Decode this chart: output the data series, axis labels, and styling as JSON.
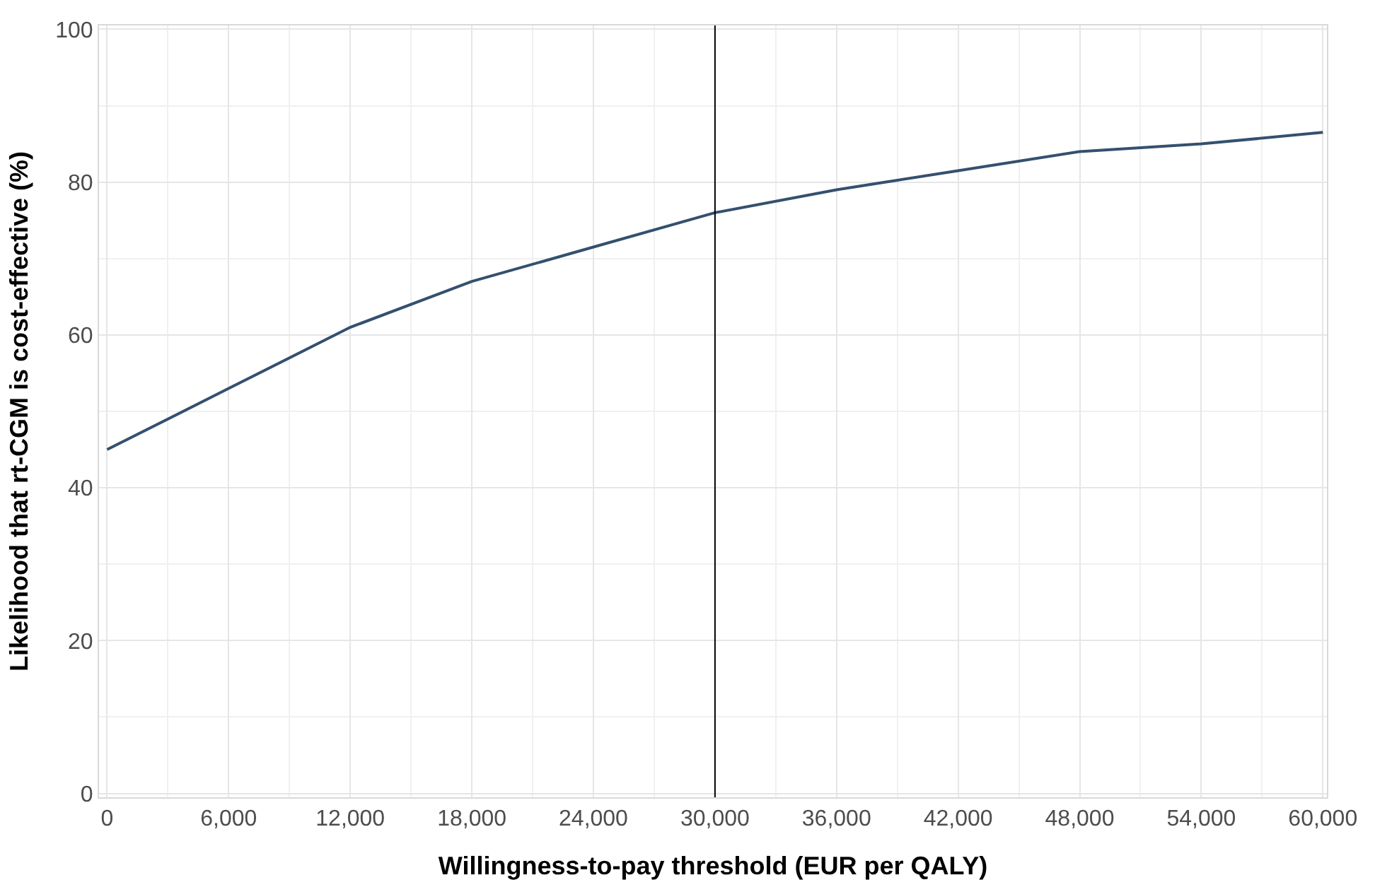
{
  "chart_data": {
    "type": "line",
    "xlabel": "Willingness-to-pay threshold (EUR per QALY)",
    "ylabel": "Likelihood that rt-CGM is cost-effective (%)",
    "x": [
      0,
      6000,
      12000,
      18000,
      24000,
      30000,
      36000,
      42000,
      48000,
      54000,
      60000
    ],
    "series": [
      {
        "color": "#34506f",
        "values": [
          45,
          53,
          61,
          67,
          71.5,
          76,
          79,
          81.5,
          84,
          85,
          86.5
        ]
      }
    ],
    "xlim": [
      -400,
      60200
    ],
    "xticks": [
      {
        "value": 0,
        "label": "0"
      },
      {
        "value": 6000,
        "label": "6,000"
      },
      {
        "value": 12000,
        "label": "12,000"
      },
      {
        "value": 18000,
        "label": "18,000"
      },
      {
        "value": 24000,
        "label": "24,000"
      },
      {
        "value": 30000,
        "label": "30,000"
      },
      {
        "value": 36000,
        "label": "36,000"
      },
      {
        "value": 42000,
        "label": "42,000"
      },
      {
        "value": 48000,
        "label": "48,000"
      },
      {
        "value": 54000,
        "label": "54,000"
      },
      {
        "value": 60000,
        "label": "60,000"
      }
    ],
    "ylim": [
      -0.5,
      100.5
    ],
    "yticks": [
      0,
      20,
      40,
      60,
      80,
      100
    ],
    "ref_lines": [
      {
        "axis": "x",
        "value": 30000,
        "color": "#000000"
      }
    ],
    "grid": true,
    "marker": "none",
    "line_style": "solid"
  }
}
